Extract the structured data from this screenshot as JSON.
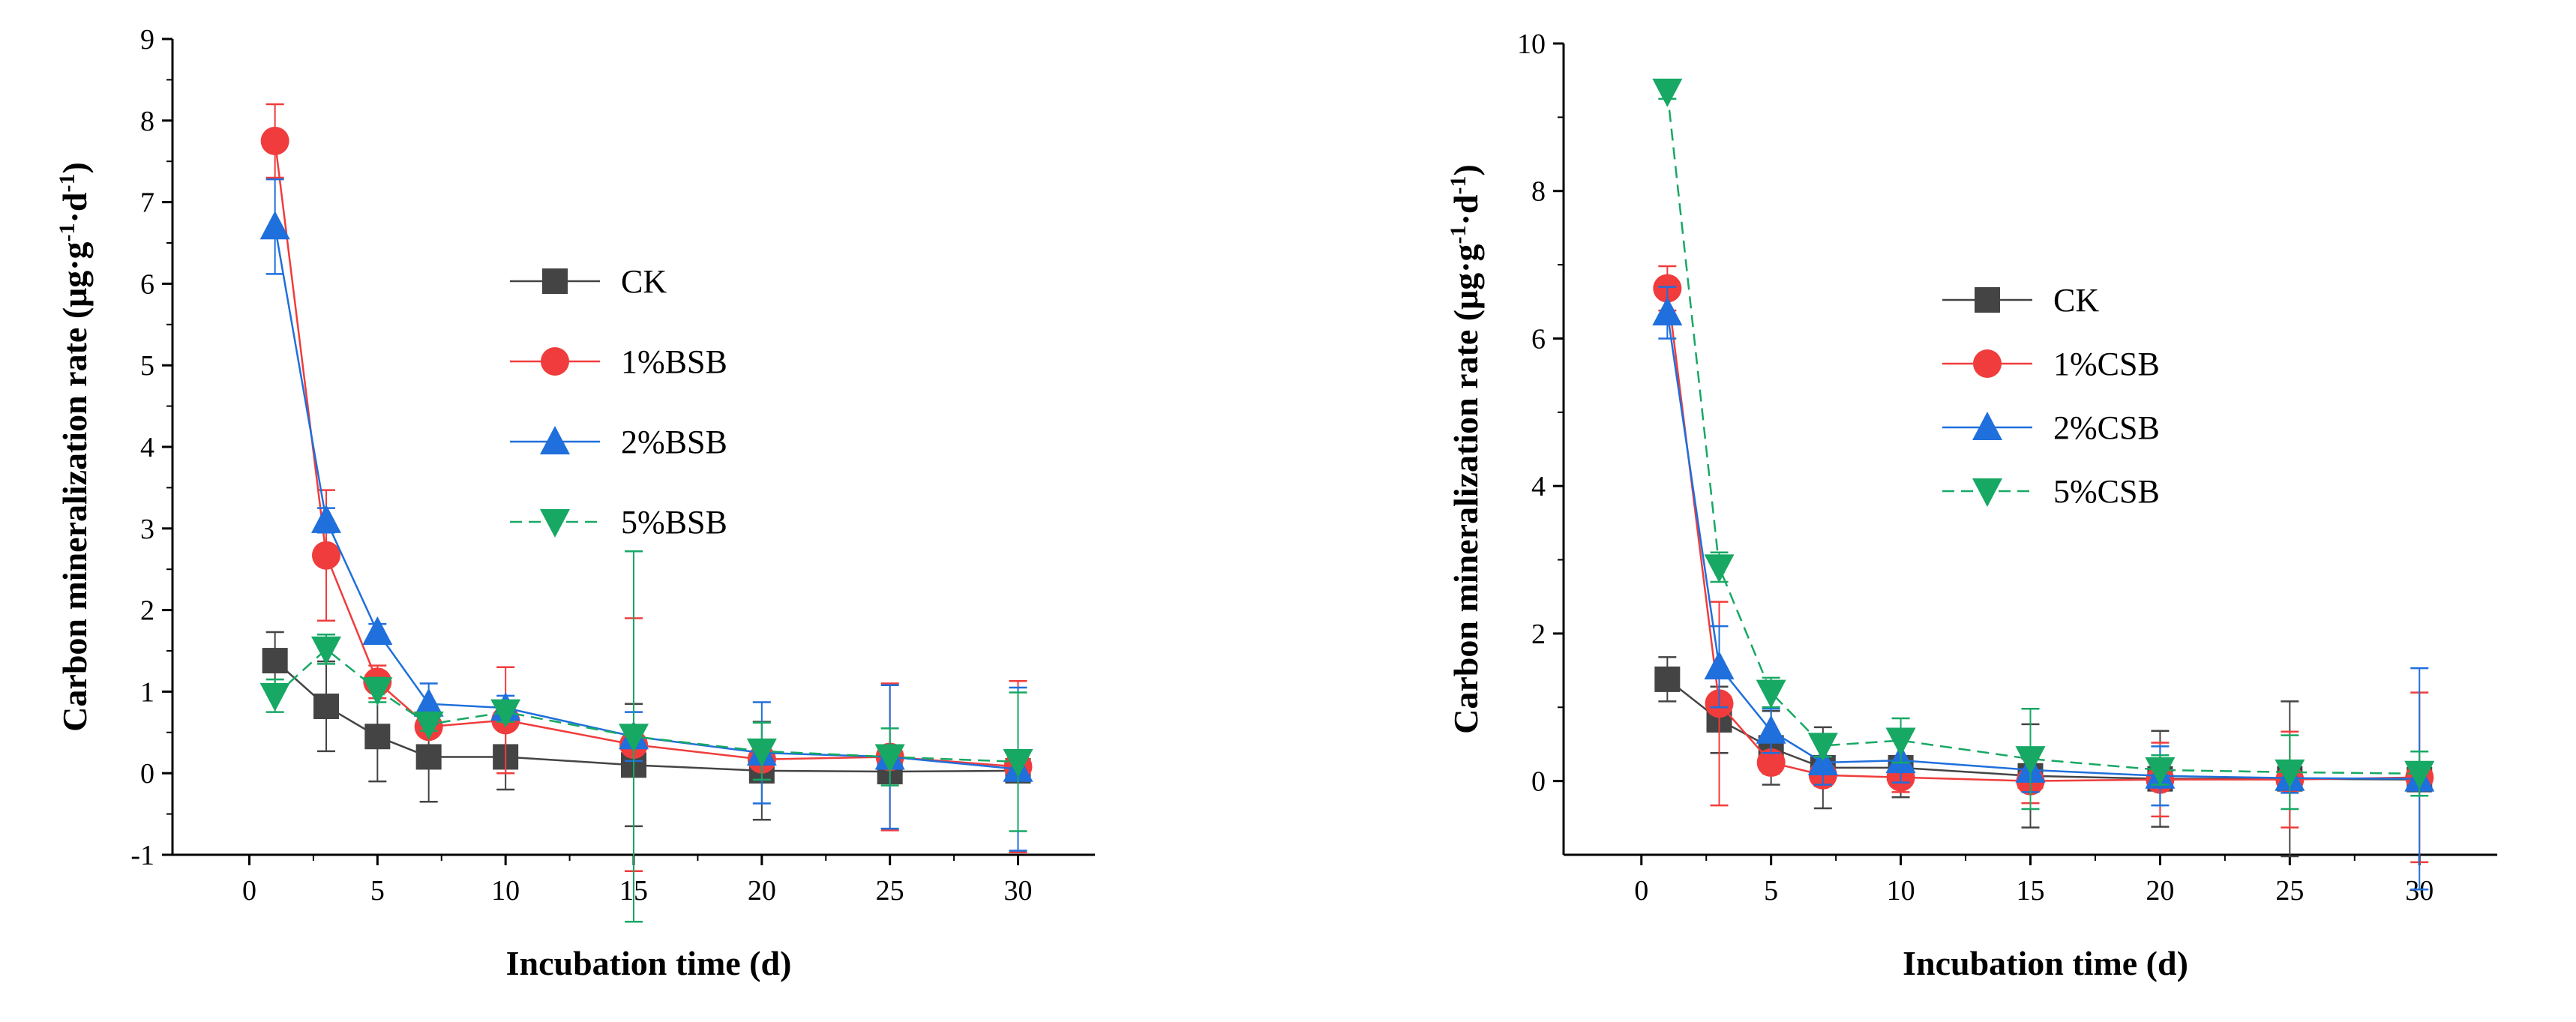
{
  "figure": {
    "colors": {
      "CK": "#444444",
      "1pct": "#f03c3c",
      "2pct": "#1f6fdc",
      "5pct": "#17a864"
    }
  },
  "chart_data": [
    {
      "type": "line",
      "title": "",
      "xlabel": "Incubation time (d)",
      "ylabel_main": "Carbon mineralization rate (μg·g",
      "ylabel_sup1": "-1",
      "ylabel_mid": "·d",
      "ylabel_sup2": "-1",
      "ylabel_end": ")",
      "xlim": [
        -3,
        33
      ],
      "ylim": [
        -1,
        9
      ],
      "xticks": [
        0,
        5,
        10,
        15,
        20,
        25,
        30
      ],
      "yticks": [
        -1,
        0,
        1,
        2,
        3,
        4,
        5,
        6,
        7,
        8,
        9
      ],
      "x": [
        1,
        3,
        5,
        7,
        10,
        15,
        20,
        25,
        30
      ],
      "legend_position": "upper-middle",
      "series": [
        {
          "name": "CK",
          "marker": "square",
          "color": "#444444",
          "dash": "",
          "values": [
            1.38,
            0.82,
            0.45,
            0.2,
            0.2,
            0.1,
            0.03,
            0.02,
            0.03
          ],
          "errors": [
            0.35,
            0.55,
            0.55,
            0.55,
            0.4,
            0.75,
            0.6,
            0.1,
            0.05
          ]
        },
        {
          "name": "1%BSB",
          "marker": "circle",
          "color": "#f03c3c",
          "dash": "",
          "values": [
            7.75,
            2.67,
            1.12,
            0.57,
            0.65,
            0.35,
            0.17,
            0.2,
            0.08
          ],
          "errors": [
            0.45,
            0.8,
            0.2,
            0.1,
            0.65,
            1.55,
            0.1,
            0.9,
            1.05
          ]
        },
        {
          "name": "2%BSB",
          "marker": "triangle-up",
          "color": "#1f6fdc",
          "dash": "",
          "values": [
            6.7,
            3.1,
            1.73,
            0.85,
            0.8,
            0.45,
            0.25,
            0.2,
            0.05
          ],
          "errors": [
            0.58,
            0.15,
            0.1,
            0.25,
            0.15,
            0.3,
            0.62,
            0.88,
            1.0
          ]
        },
        {
          "name": "5%BSB",
          "marker": "triangle-down",
          "color": "#17a864",
          "dash": "16,9",
          "values": [
            0.95,
            1.52,
            1.02,
            0.6,
            0.75,
            0.45,
            0.27,
            0.2,
            0.14
          ],
          "errors": [
            0.2,
            0.18,
            0.15,
            0.08,
            0.12,
            2.27,
            0.35,
            0.35,
            0.85
          ]
        }
      ]
    },
    {
      "type": "line",
      "title": "",
      "xlabel": "Incubation time (d)",
      "ylabel_main": "Carbon mineralization rate (μg·g",
      "ylabel_sup1": "-1",
      "ylabel_mid": "·d",
      "ylabel_sup2": "-1",
      "ylabel_end": ")",
      "xlim": [
        -3,
        33
      ],
      "ylim": [
        -1,
        10
      ],
      "xticks": [
        0,
        5,
        10,
        15,
        20,
        25,
        30
      ],
      "yticks": [
        0,
        2,
        4,
        6,
        8,
        10
      ],
      "x": [
        1,
        3,
        5,
        7,
        10,
        15,
        20,
        25,
        30
      ],
      "legend_position": "upper-middle",
      "series": [
        {
          "name": "CK",
          "marker": "square",
          "color": "#444444",
          "dash": "",
          "values": [
            1.38,
            0.83,
            0.45,
            0.18,
            0.18,
            0.07,
            0.03,
            0.03,
            0.02
          ],
          "errors": [
            0.3,
            0.45,
            0.5,
            0.55,
            0.4,
            0.7,
            0.65,
            1.05,
            0.05
          ]
        },
        {
          "name": "1%CSB",
          "marker": "circle",
          "color": "#f03c3c",
          "dash": "",
          "values": [
            6.68,
            1.05,
            0.25,
            0.08,
            0.05,
            0.0,
            0.02,
            0.02,
            0.05
          ],
          "errors": [
            0.3,
            1.38,
            0.15,
            0.15,
            0.2,
            0.3,
            0.5,
            0.65,
            1.15
          ]
        },
        {
          "name": "2%CSB",
          "marker": "triangle-up",
          "color": "#1f6fdc",
          "dash": "",
          "values": [
            6.35,
            1.55,
            0.68,
            0.25,
            0.28,
            0.15,
            0.07,
            0.04,
            0.03
          ],
          "errors": [
            0.35,
            0.55,
            0.3,
            0.3,
            0.3,
            0.3,
            0.4,
            0.2,
            1.5
          ]
        },
        {
          "name": "5%CSB",
          "marker": "triangle-down",
          "color": "#17a864",
          "dash": "16,9",
          "values": [
            9.35,
            2.9,
            1.2,
            0.48,
            0.55,
            0.3,
            0.15,
            0.12,
            0.1
          ],
          "errors": [
            0.1,
            0.2,
            0.2,
            0.15,
            0.3,
            0.68,
            0.2,
            0.5,
            0.3
          ]
        }
      ]
    }
  ]
}
